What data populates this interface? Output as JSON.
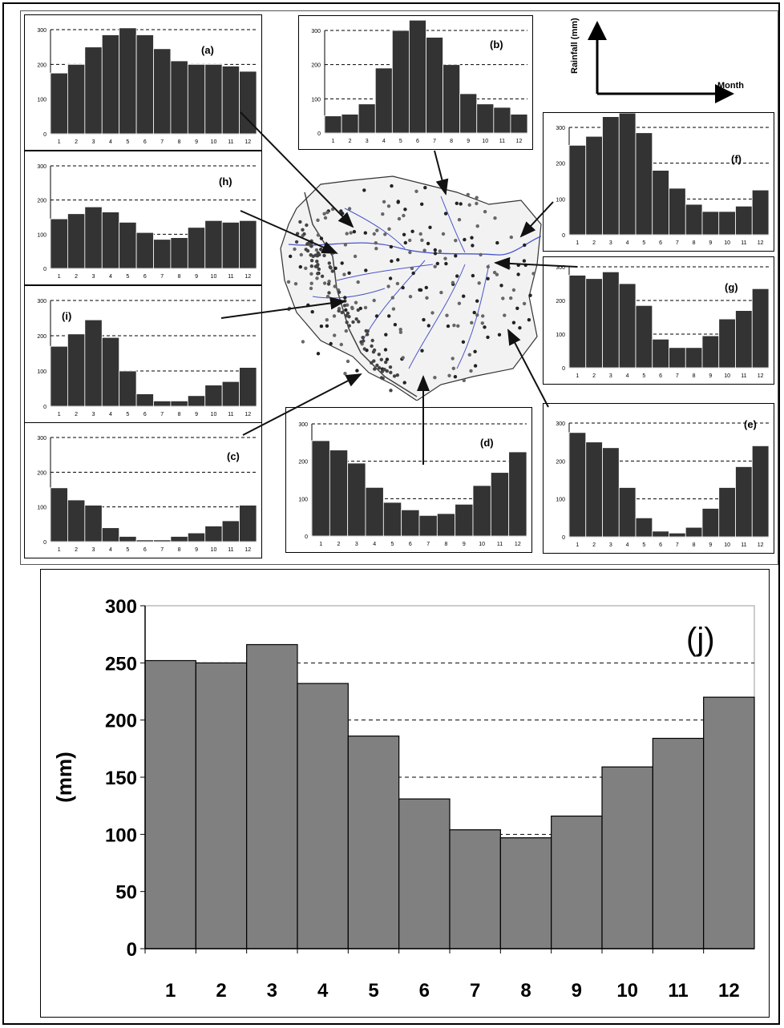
{
  "legend": {
    "y_label": "Rainfall (mm)",
    "x_label": "Month"
  },
  "chart_data": [
    {
      "id": "a",
      "type": "bar",
      "title": "(a)",
      "categories": [
        "1",
        "2",
        "3",
        "4",
        "5",
        "6",
        "7",
        "8",
        "9",
        "10",
        "11",
        "12"
      ],
      "values": [
        175,
        200,
        250,
        285,
        305,
        285,
        245,
        210,
        200,
        200,
        195,
        180
      ],
      "ylim": [
        0,
        300
      ],
      "ytick_labels": [
        "0",
        "100",
        "200",
        "300"
      ]
    },
    {
      "id": "b",
      "type": "bar",
      "title": "(b)",
      "categories": [
        "1",
        "2",
        "3",
        "4",
        "5",
        "6",
        "7",
        "8",
        "9",
        "10",
        "11",
        "12"
      ],
      "values": [
        50,
        55,
        85,
        190,
        300,
        330,
        280,
        200,
        115,
        85,
        75,
        55
      ],
      "ylim": [
        0,
        300
      ],
      "ytick_labels": [
        "0",
        "100",
        "200",
        "300"
      ]
    },
    {
      "id": "f",
      "type": "bar",
      "title": "(f)",
      "categories": [
        "1",
        "2",
        "3",
        "4",
        "5",
        "6",
        "7",
        "8",
        "9",
        "10",
        "11",
        "12"
      ],
      "values": [
        250,
        275,
        330,
        340,
        285,
        180,
        130,
        85,
        65,
        65,
        80,
        125
      ],
      "ylim": [
        0,
        300
      ],
      "ytick_labels": [
        "0",
        "100",
        "200",
        "300"
      ]
    },
    {
      "id": "h",
      "type": "bar",
      "title": "(h)",
      "categories": [
        "1",
        "2",
        "3",
        "4",
        "5",
        "6",
        "7",
        "8",
        "9",
        "10",
        "11",
        "12"
      ],
      "values": [
        145,
        160,
        180,
        165,
        135,
        105,
        85,
        90,
        120,
        140,
        135,
        140
      ],
      "ylim": [
        0,
        300
      ],
      "ytick_labels": [
        "0",
        "100",
        "200",
        "300"
      ]
    },
    {
      "id": "i",
      "type": "bar",
      "title": "(i)",
      "categories": [
        "1",
        "2",
        "3",
        "4",
        "5",
        "6",
        "7",
        "8",
        "9",
        "10",
        "11",
        "12"
      ],
      "values": [
        170,
        205,
        245,
        195,
        100,
        35,
        15,
        15,
        30,
        60,
        70,
        110
      ],
      "ylim": [
        0,
        300
      ],
      "ytick_labels": [
        "0",
        "100",
        "200",
        "300"
      ]
    },
    {
      "id": "g",
      "type": "bar",
      "title": "(g)",
      "categories": [
        "1",
        "2",
        "3",
        "4",
        "5",
        "6",
        "7",
        "8",
        "9",
        "10",
        "11",
        "12"
      ],
      "values": [
        275,
        265,
        285,
        250,
        185,
        85,
        60,
        60,
        95,
        145,
        170,
        235
      ],
      "ylim": [
        0,
        300
      ],
      "ytick_labels": [
        "0",
        "100",
        "200",
        "300"
      ]
    },
    {
      "id": "c",
      "type": "bar",
      "title": "(c)",
      "categories": [
        "1",
        "2",
        "3",
        "4",
        "5",
        "6",
        "7",
        "8",
        "9",
        "10",
        "11",
        "12"
      ],
      "values": [
        155,
        120,
        105,
        40,
        15,
        5,
        5,
        15,
        25,
        45,
        60,
        105
      ],
      "ylim": [
        0,
        300
      ],
      "ytick_labels": [
        "0",
        "100",
        "200",
        "300"
      ]
    },
    {
      "id": "d",
      "type": "bar",
      "title": "(d)",
      "categories": [
        "1",
        "2",
        "3",
        "4",
        "5",
        "6",
        "7",
        "8",
        "9",
        "10",
        "11",
        "12"
      ],
      "values": [
        255,
        230,
        195,
        130,
        90,
        70,
        55,
        60,
        85,
        135,
        170,
        225
      ],
      "ylim": [
        0,
        300
      ],
      "ytick_labels": [
        "0",
        "100",
        "200",
        "300"
      ]
    },
    {
      "id": "e",
      "type": "bar",
      "title": "(e)",
      "categories": [
        "1",
        "2",
        "3",
        "4",
        "5",
        "6",
        "7",
        "8",
        "9",
        "10",
        "11",
        "12"
      ],
      "values": [
        275,
        250,
        235,
        130,
        50,
        15,
        10,
        25,
        75,
        130,
        185,
        240
      ],
      "ylim": [
        0,
        300
      ],
      "ytick_labels": [
        "0",
        "100",
        "200",
        "300"
      ]
    },
    {
      "id": "j",
      "type": "bar",
      "title": "(j)",
      "ylabel": "(mm)",
      "categories": [
        "1",
        "2",
        "3",
        "4",
        "5",
        "6",
        "7",
        "8",
        "9",
        "10",
        "11",
        "12"
      ],
      "values": [
        252,
        250,
        266,
        232,
        186,
        131,
        104,
        97,
        116,
        159,
        184,
        220
      ],
      "ylim": [
        0,
        300
      ],
      "ytick_labels": [
        "0",
        "50",
        "100",
        "150",
        "200",
        "250",
        "300"
      ]
    }
  ]
}
